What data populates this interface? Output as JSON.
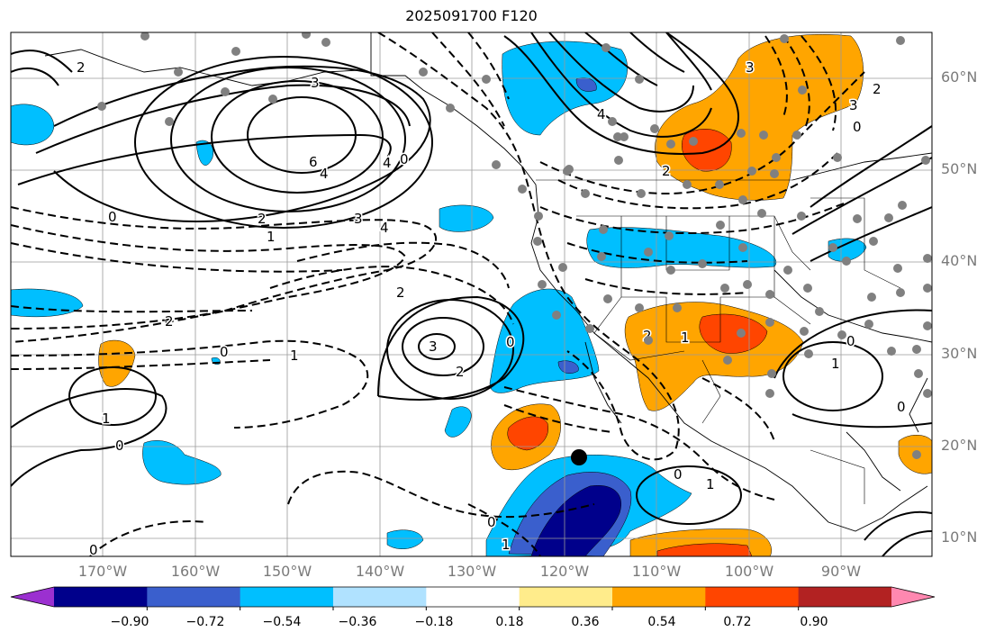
{
  "title": "2025091700 F120",
  "lat_labels": [
    "60°N",
    "50°N",
    "40°N",
    "30°N",
    "20°N",
    "10°N"
  ],
  "lon_labels": [
    "170°W",
    "160°W",
    "150°W",
    "140°W",
    "130°W",
    "120°W",
    "110°W",
    "100°W",
    "90°W"
  ],
  "colorbar": {
    "ticks": [
      "−0.90",
      "−0.72",
      "−0.54",
      "−0.36",
      "−0.18",
      "0.18",
      "0.36",
      "0.54",
      "0.72",
      "0.90"
    ],
    "colors": [
      "#9b30d0",
      "#00008b",
      "#3a5fcd",
      "#00bfff",
      "#b0e2ff",
      "#ffffff",
      "#ffec8b",
      "#ffa500",
      "#ff4500",
      "#b22222",
      "#ff88b0"
    ]
  },
  "contour_labels": [
    "2",
    "3",
    "4",
    "6",
    "4",
    "2",
    "1",
    "0",
    "0",
    "3",
    "4",
    "2",
    "2",
    "1",
    "0",
    "1",
    "0",
    "3",
    "2",
    "2",
    "1",
    "0",
    "1",
    "0",
    "0",
    "1",
    "0",
    "1",
    "0",
    "4",
    "3",
    "2",
    "3",
    "0",
    "2",
    "0"
  ],
  "station_marker": "center-point"
}
